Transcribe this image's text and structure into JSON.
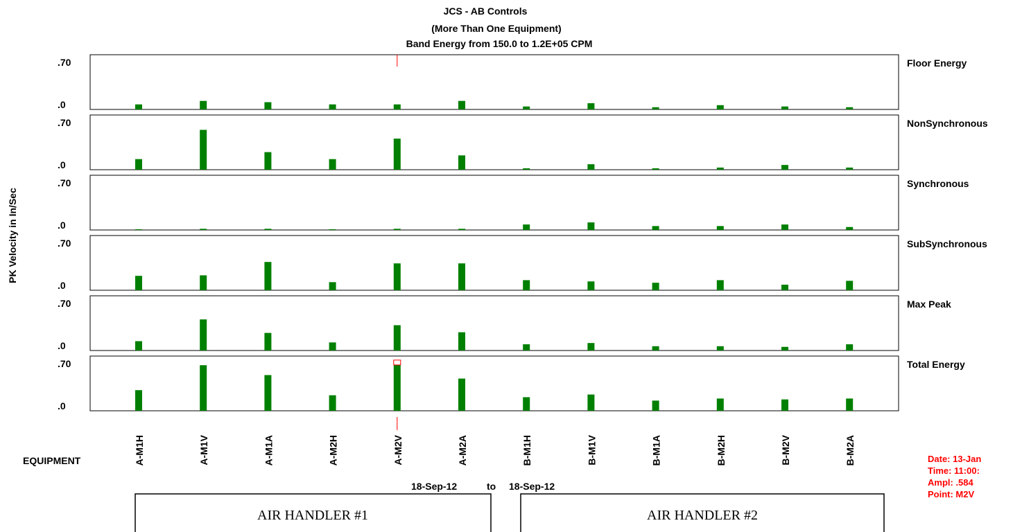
{
  "title_lines": [
    "JCS  - AB Controls",
    "(More Than One Equipment)",
    "Band Energy from   150.0  to 1.2E+05 CPM"
  ],
  "y_axis_label": "PK Velocity in In/Sec",
  "equipment_label": "EQUIPMENT",
  "date_range": {
    "from": "18-Sep-12",
    "to_word": "to",
    "to": "18-Sep-12"
  },
  "group_labels": [
    "AIR HANDLER #1",
    "AIR HANDLER #2"
  ],
  "readout": {
    "date": "Date:  13-Jan",
    "time": "Time:  11:00:",
    "ampl": "Ampl:     .584",
    "point": "Point:   M2V"
  },
  "colors": {
    "bar": "#008000",
    "cursor": "#ff0000",
    "frame": "#000000"
  },
  "chart_data": {
    "type": "bar",
    "categories": [
      "A-M1H",
      "A-M1V",
      "A-M1A",
      "A-M2H",
      "A-M2V",
      "A-M2A",
      "B-M1H",
      "B-M1V",
      "B-M1A",
      "B-M2H",
      "B-M2V",
      "B-M2A"
    ],
    "ylim": [
      0,
      0.7
    ],
    "y_tick_labels": [
      ".70",
      ".0"
    ],
    "ylabel": "PK Velocity in In/Sec",
    "xlabel": "EQUIPMENT",
    "cursor_index": 4,
    "grid": false,
    "panels": [
      {
        "name": "Floor Energy",
        "values": [
          0.068,
          0.115,
          0.098,
          0.068,
          0.068,
          0.115,
          0.04,
          0.084,
          0.03,
          0.058,
          0.04,
          0.03
        ]
      },
      {
        "name": "NonSynchronous",
        "values": [
          0.143,
          0.537,
          0.237,
          0.143,
          0.419,
          0.193,
          0.019,
          0.074,
          0.019,
          0.029,
          0.064,
          0.029
        ]
      },
      {
        "name": "Synchronous",
        "values": [
          0.01,
          0.016,
          0.016,
          0.01,
          0.016,
          0.016,
          0.074,
          0.102,
          0.053,
          0.053,
          0.074,
          0.04
        ]
      },
      {
        "name": "SubSynchronous",
        "values": [
          0.194,
          0.201,
          0.381,
          0.109,
          0.362,
          0.362,
          0.136,
          0.119,
          0.101,
          0.136,
          0.075,
          0.127
        ]
      },
      {
        "name": "Max Peak",
        "values": [
          0.126,
          0.419,
          0.237,
          0.109,
          0.341,
          0.246,
          0.084,
          0.101,
          0.058,
          0.058,
          0.049,
          0.084
        ]
      },
      {
        "name": "Total Energy",
        "values": [
          0.278,
          0.614,
          0.481,
          0.209,
          0.655,
          0.434,
          0.183,
          0.219,
          0.137,
          0.165,
          0.153,
          0.165
        ]
      }
    ]
  }
}
